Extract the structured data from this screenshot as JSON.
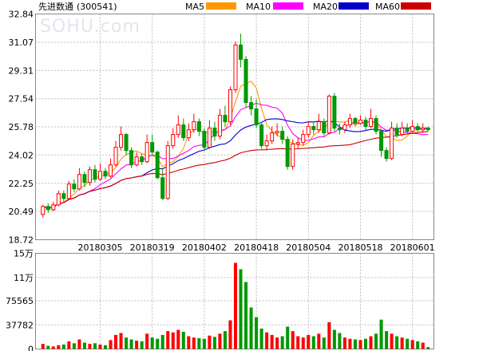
{
  "stock": {
    "name": "先进数通",
    "code": "(300541)"
  },
  "watermark": "SOHU.com",
  "legend": [
    {
      "name": "MA5",
      "color": "#ff9900"
    },
    {
      "name": "MA10",
      "color": "#ff00ff"
    },
    {
      "name": "MA20",
      "color": "#0000cc"
    },
    {
      "name": "MA60",
      "color": "#cc0000"
    }
  ],
  "colors": {
    "up": "#ff0000",
    "down": "#009900",
    "grid": "#bbbbbb",
    "frame": "#888888"
  },
  "chart_data": {
    "type": "candlestick",
    "price_axis": {
      "ylim": [
        18.72,
        32.84
      ],
      "ticks": [
        "32.84",
        "31.07",
        "29.31",
        "27.54",
        "25.78",
        "24.02",
        "22.25",
        "20.49",
        "18.72"
      ]
    },
    "volume_axis": {
      "ylim": [
        0,
        150000
      ],
      "ticks": [
        "15万",
        "11万",
        "75565",
        "37782",
        "0"
      ]
    },
    "date_ticks": [
      {
        "label": "20180305",
        "index": 11
      },
      {
        "label": "20180319",
        "index": 21
      },
      {
        "label": "20180402",
        "index": 31
      },
      {
        "label": "20180418",
        "index": 41
      },
      {
        "label": "20180504",
        "index": 51
      },
      {
        "label": "20180518",
        "index": 61
      },
      {
        "label": "20180601",
        "index": 71
      }
    ],
    "candles": [
      [
        20.3,
        20.8,
        20.1,
        20.9
      ],
      [
        20.8,
        20.6,
        20.4,
        21.0
      ],
      [
        20.6,
        20.9,
        20.5,
        21.1
      ],
      [
        20.9,
        21.6,
        20.8,
        21.8
      ],
      [
        21.6,
        21.3,
        21.1,
        21.8
      ],
      [
        21.3,
        22.2,
        21.2,
        22.4
      ],
      [
        22.2,
        21.9,
        21.7,
        22.5
      ],
      [
        21.9,
        22.8,
        21.8,
        23.2
      ],
      [
        22.8,
        22.3,
        22.0,
        23.0
      ],
      [
        22.3,
        23.1,
        22.1,
        23.3
      ],
      [
        23.1,
        22.5,
        22.3,
        23.4
      ],
      [
        22.5,
        23.0,
        22.4,
        23.5
      ],
      [
        23.0,
        22.7,
        22.5,
        23.2
      ],
      [
        22.7,
        23.4,
        22.6,
        23.8
      ],
      [
        23.4,
        24.5,
        23.3,
        24.9
      ],
      [
        24.5,
        25.3,
        24.3,
        25.8
      ],
      [
        25.3,
        24.3,
        24.0,
        25.4
      ],
      [
        24.3,
        23.4,
        23.2,
        24.5
      ],
      [
        23.4,
        23.9,
        23.3,
        24.2
      ],
      [
        23.9,
        23.6,
        23.4,
        24.1
      ],
      [
        23.6,
        24.8,
        23.5,
        25.3
      ],
      [
        24.8,
        24.2,
        24.0,
        25.3
      ],
      [
        24.2,
        22.6,
        22.5,
        24.3
      ],
      [
        22.6,
        21.3,
        21.2,
        23.2
      ],
      [
        21.3,
        24.6,
        21.2,
        24.9
      ],
      [
        24.6,
        25.3,
        24.4,
        25.7
      ],
      [
        25.3,
        25.9,
        25.1,
        26.5
      ],
      [
        25.9,
        25.1,
        24.9,
        26.3
      ],
      [
        25.1,
        25.6,
        24.9,
        26.0
      ],
      [
        25.6,
        26.1,
        25.4,
        26.6
      ],
      [
        26.1,
        25.5,
        25.2,
        26.3
      ],
      [
        25.5,
        24.5,
        24.3,
        25.7
      ],
      [
        24.5,
        25.7,
        24.4,
        26.2
      ],
      [
        25.7,
        25.2,
        24.9,
        26.1
      ],
      [
        25.2,
        26.5,
        25.0,
        26.9
      ],
      [
        26.5,
        26.1,
        25.8,
        27.1
      ],
      [
        26.1,
        28.1,
        25.9,
        28.3
      ],
      [
        28.1,
        30.9,
        27.9,
        31.1
      ],
      [
        30.9,
        30.0,
        29.5,
        31.6
      ],
      [
        30.0,
        27.3,
        27.0,
        30.2
      ],
      [
        27.3,
        26.9,
        26.5,
        27.7
      ],
      [
        26.9,
        25.9,
        25.7,
        27.5
      ],
      [
        25.9,
        24.6,
        24.4,
        26.1
      ],
      [
        24.6,
        24.9,
        24.3,
        25.3
      ],
      [
        24.9,
        25.4,
        24.7,
        25.8
      ],
      [
        25.4,
        25.5,
        25.2,
        26.0
      ],
      [
        25.5,
        25.0,
        24.7,
        25.8
      ],
      [
        25.0,
        23.3,
        23.1,
        25.2
      ],
      [
        23.3,
        24.7,
        23.1,
        25.0
      ],
      [
        24.7,
        24.8,
        24.4,
        25.1
      ],
      [
        24.8,
        25.3,
        24.6,
        25.6
      ],
      [
        25.3,
        25.8,
        25.1,
        26.1
      ],
      [
        25.8,
        25.6,
        25.3,
        26.1
      ],
      [
        25.6,
        26.1,
        25.4,
        26.6
      ],
      [
        26.1,
        25.4,
        25.2,
        26.3
      ],
      [
        25.4,
        27.7,
        25.3,
        27.8
      ],
      [
        27.7,
        25.7,
        25.5,
        27.9
      ],
      [
        25.7,
        25.6,
        25.3,
        26.0
      ],
      [
        25.6,
        25.9,
        25.4,
        26.1
      ],
      [
        25.9,
        26.3,
        25.7,
        26.6
      ],
      [
        26.3,
        26.0,
        25.8,
        26.4
      ],
      [
        26.0,
        26.2,
        25.9,
        26.5
      ],
      [
        26.2,
        25.8,
        25.6,
        26.4
      ],
      [
        25.8,
        26.3,
        25.7,
        26.9
      ],
      [
        26.3,
        25.5,
        25.3,
        26.5
      ],
      [
        25.5,
        24.3,
        23.9,
        25.6
      ],
      [
        24.3,
        23.8,
        23.6,
        24.5
      ],
      [
        23.8,
        25.7,
        23.7,
        26.1
      ],
      [
        25.7,
        25.3,
        25.1,
        26.0
      ],
      [
        25.3,
        25.7,
        25.2,
        26.1
      ],
      [
        25.7,
        25.5,
        25.3,
        26.0
      ],
      [
        25.5,
        25.8,
        25.4,
        26.2
      ],
      [
        25.8,
        25.6,
        25.5,
        26.0
      ],
      [
        25.6,
        25.7,
        25.4,
        26.0
      ],
      [
        25.7,
        25.6,
        25.5,
        25.8
      ]
    ],
    "volumes": [
      8000,
      5000,
      4000,
      6000,
      7000,
      12000,
      9000,
      15000,
      10000,
      8000,
      9000,
      7000,
      6000,
      14000,
      22000,
      25000,
      18000,
      15000,
      13000,
      12000,
      24000,
      18000,
      16000,
      22000,
      28000,
      26000,
      30000,
      27000,
      20000,
      18000,
      17000,
      16000,
      21000,
      19000,
      24000,
      28000,
      45000,
      135000,
      125000,
      105000,
      65000,
      50000,
      32000,
      26000,
      22000,
      18000,
      20000,
      35000,
      28000,
      20000,
      18000,
      22000,
      20000,
      24000,
      18000,
      42000,
      30000,
      25000,
      18000,
      16000,
      15000,
      14000,
      16000,
      20000,
      24000,
      46000,
      28000,
      24000,
      20000,
      18000,
      16000,
      14000,
      12000,
      10000,
      3000
    ]
  }
}
